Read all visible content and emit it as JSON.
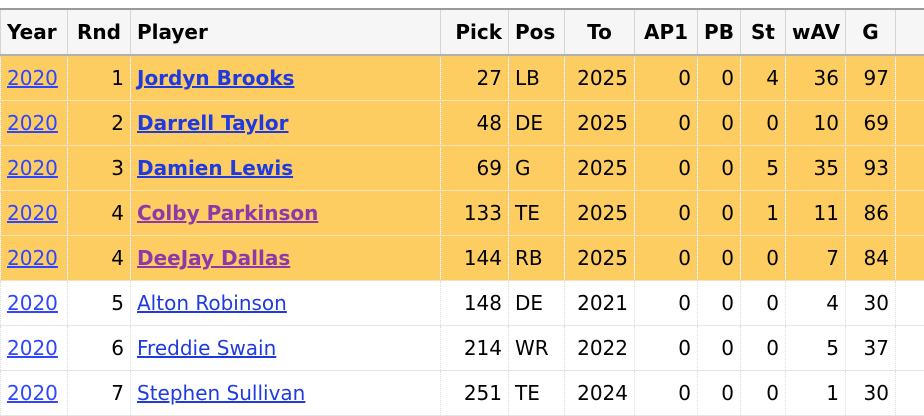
{
  "headers": [
    "Year",
    "Rnd",
    "Player",
    "Pick",
    "Pos",
    "To",
    "AP1",
    "PB",
    "St",
    "wAV",
    "G"
  ],
  "rows": [
    {
      "year": "2020",
      "rnd": "1",
      "player": "Jordyn Brooks",
      "pick": "27",
      "pos": "LB",
      "to": "2025",
      "ap1": "0",
      "pb": "0",
      "st": "4",
      "wav": "36",
      "g": "97",
      "highlight": true,
      "visited": false
    },
    {
      "year": "2020",
      "rnd": "2",
      "player": "Darrell Taylor",
      "pick": "48",
      "pos": "DE",
      "to": "2025",
      "ap1": "0",
      "pb": "0",
      "st": "0",
      "wav": "10",
      "g": "69",
      "highlight": true,
      "visited": false
    },
    {
      "year": "2020",
      "rnd": "3",
      "player": "Damien Lewis",
      "pick": "69",
      "pos": "G",
      "to": "2025",
      "ap1": "0",
      "pb": "0",
      "st": "5",
      "wav": "35",
      "g": "93",
      "highlight": true,
      "visited": false
    },
    {
      "year": "2020",
      "rnd": "4",
      "player": "Colby Parkinson",
      "pick": "133",
      "pos": "TE",
      "to": "2025",
      "ap1": "0",
      "pb": "0",
      "st": "1",
      "wav": "11",
      "g": "86",
      "highlight": true,
      "visited": true
    },
    {
      "year": "2020",
      "rnd": "4",
      "player": "DeeJay Dallas",
      "pick": "144",
      "pos": "RB",
      "to": "2025",
      "ap1": "0",
      "pb": "0",
      "st": "0",
      "wav": "7",
      "g": "84",
      "highlight": true,
      "visited": true
    },
    {
      "year": "2020",
      "rnd": "5",
      "player": "Alton Robinson",
      "pick": "148",
      "pos": "DE",
      "to": "2021",
      "ap1": "0",
      "pb": "0",
      "st": "0",
      "wav": "4",
      "g": "30",
      "highlight": false,
      "visited": false
    },
    {
      "year": "2020",
      "rnd": "6",
      "player": "Freddie Swain",
      "pick": "214",
      "pos": "WR",
      "to": "2022",
      "ap1": "0",
      "pb": "0",
      "st": "0",
      "wav": "5",
      "g": "37",
      "highlight": false,
      "visited": false
    },
    {
      "year": "2020",
      "rnd": "7",
      "player": "Stephen Sullivan",
      "pick": "251",
      "pos": "TE",
      "to": "2024",
      "ap1": "0",
      "pb": "0",
      "st": "0",
      "wav": "1",
      "g": "30",
      "highlight": false,
      "visited": false
    }
  ],
  "colors": {
    "highlight_bg": "#fdcd62",
    "link": "#1f3be0",
    "visited_link": "#8d3aa8",
    "header_bg": "#f6f6f6"
  }
}
